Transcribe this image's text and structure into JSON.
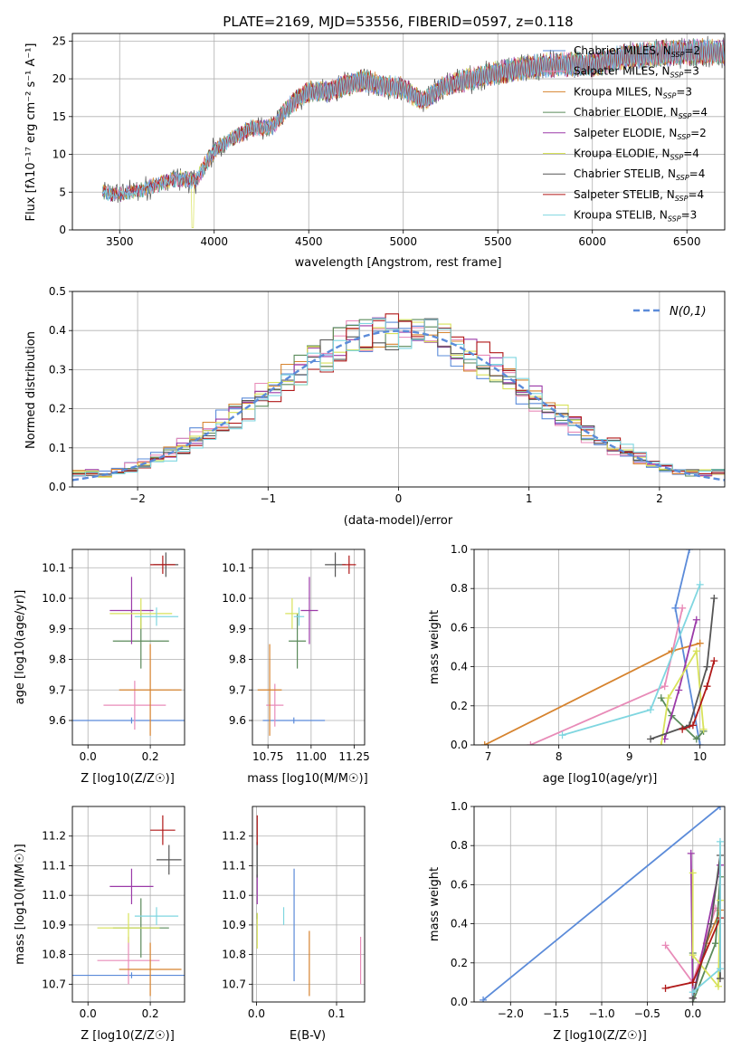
{
  "colors": {
    "Chabrier MILES": "#5b8bd9",
    "Salpeter MILES": "#e88bb8",
    "Kroupa MILES": "#d6832e",
    "Chabrier ELODIE": "#5a8a5a",
    "Salpeter ELODIE": "#9b3aa8",
    "Kroupa ELODIE": "#d8e25a",
    "Chabrier STELIB": "#555555",
    "Salpeter STELIB": "#b01818",
    "Kroupa STELIB": "#7fd6e0",
    "gauss": "#5b8bd9"
  },
  "series": [
    {
      "name": "Chabrier MILES",
      "nssp": "2"
    },
    {
      "name": "Salpeter MILES",
      "nssp": "3"
    },
    {
      "name": "Kroupa MILES",
      "nssp": "3"
    },
    {
      "name": "Chabrier ELODIE",
      "nssp": "4"
    },
    {
      "name": "Salpeter ELODIE",
      "nssp": "2"
    },
    {
      "name": "Kroupa ELODIE",
      "nssp": "4"
    },
    {
      "name": "Chabrier STELIB",
      "nssp": "4"
    },
    {
      "name": "Salpeter STELIB",
      "nssp": "4"
    },
    {
      "name": "Kroupa STELIB",
      "nssp": "3"
    }
  ],
  "chart_data": [
    {
      "id": "spectrum",
      "type": "line",
      "title": "PLATE=2169, MJD=53556, FIBERID=0597, z=0.118",
      "xlabel": "wavelength [Angstrom, rest frame]",
      "ylabel": "Flux [f_λ10^-17 erg cm^-2 s^-1 A^-1]",
      "xlim": [
        3250,
        6700
      ],
      "ylim": [
        0,
        26
      ],
      "xticks": [
        3500,
        4000,
        4500,
        5000,
        5500,
        6000,
        6500
      ],
      "yticks": [
        0,
        5,
        10,
        15,
        20,
        25
      ],
      "continuum": {
        "x": [
          3400,
          3500,
          3600,
          3700,
          3800,
          3900,
          4000,
          4100,
          4200,
          4300,
          4400,
          4500,
          4600,
          4700,
          4800,
          4900,
          5000,
          5100,
          5200,
          5300,
          5400,
          5500,
          5600,
          5700,
          5800,
          5900,
          6000,
          6100,
          6200,
          6300,
          6400,
          6500,
          6600,
          6700
        ],
        "y": [
          5,
          4.7,
          5.2,
          6,
          6.8,
          6.5,
          10.5,
          12.2,
          13.5,
          13.5,
          16.5,
          18.3,
          18.3,
          19.2,
          19.8,
          19.0,
          18.8,
          17.0,
          18.8,
          19.6,
          20.2,
          20.8,
          21.3,
          21.6,
          21.8,
          22.0,
          21.8,
          22.5,
          23.0,
          23.2,
          23.4,
          23.5,
          23.6,
          23.5
        ]
      },
      "legend": "right"
    },
    {
      "id": "residuals",
      "type": "line",
      "xlabel": "(data-model)/error",
      "ylabel": "Normed distribution",
      "xlim": [
        -2.5,
        2.5
      ],
      "ylim": [
        0,
        0.5
      ],
      "xticks": [
        -2,
        -1,
        0,
        1,
        2
      ],
      "yticks": [
        0.0,
        0.1,
        0.2,
        0.3,
        0.4,
        0.5
      ],
      "legend_label": "N(0,1)",
      "bin_width": 0.1,
      "gaussian": {
        "mean": 0,
        "sigma": 1,
        "peak": 0.399
      }
    },
    {
      "id": "age_vs_Z",
      "type": "scatter",
      "xlabel": "Z [log10(Z/Z☉)]",
      "ylabel": "age [log10(age/yr)]",
      "xlim": [
        -0.05,
        0.31
      ],
      "ylim": [
        9.52,
        10.16
      ],
      "xticks": [
        0.0,
        0.2
      ],
      "yticks": [
        9.6,
        9.7,
        9.8,
        9.9,
        10.0,
        10.1
      ],
      "points": [
        {
          "series": "Chabrier MILES",
          "x": 0.14,
          "xerr": 0.28,
          "y": 9.6,
          "yerr": 0.01
        },
        {
          "series": "Salpeter MILES",
          "x": 0.15,
          "xerr": 0.1,
          "y": 9.65,
          "yerr": 0.08
        },
        {
          "series": "Kroupa MILES",
          "x": 0.2,
          "xerr": 0.1,
          "y": 9.7,
          "yerr": 0.15
        },
        {
          "series": "Chabrier ELODIE",
          "x": 0.17,
          "xerr": 0.09,
          "y": 9.86,
          "yerr": 0.09
        },
        {
          "series": "Salpeter ELODIE",
          "x": 0.14,
          "xerr": 0.07,
          "y": 9.96,
          "yerr": 0.11
        },
        {
          "series": "Kroupa ELODIE",
          "x": 0.17,
          "xerr": 0.1,
          "y": 9.95,
          "yerr": 0.05
        },
        {
          "series": "Chabrier STELIB",
          "x": 0.25,
          "xerr": 0.04,
          "y": 10.11,
          "yerr": 0.04
        },
        {
          "series": "Salpeter STELIB",
          "x": 0.24,
          "xerr": 0.04,
          "y": 10.11,
          "yerr": 0.03
        },
        {
          "series": "Kroupa STELIB",
          "x": 0.22,
          "xerr": 0.07,
          "y": 9.94,
          "yerr": 0.03
        }
      ]
    },
    {
      "id": "age_vs_mass",
      "type": "scatter",
      "xlabel": "mass [log10(M/M☉)]",
      "ylabel": "",
      "xlim": [
        10.66,
        11.31
      ],
      "ylim": [
        9.52,
        10.16
      ],
      "xticks": [
        10.75,
        11.0,
        11.25
      ],
      "yticks": [
        9.6,
        9.7,
        9.8,
        9.9,
        10.0,
        10.1
      ],
      "points": [
        {
          "series": "Chabrier MILES",
          "x": 10.9,
          "xerr": 0.18,
          "y": 9.6,
          "yerr": 0.01
        },
        {
          "series": "Salpeter MILES",
          "x": 10.79,
          "xerr": 0.05,
          "y": 9.65,
          "yerr": 0.07
        },
        {
          "series": "Kroupa MILES",
          "x": 10.76,
          "xerr": 0.07,
          "y": 9.7,
          "yerr": 0.15
        },
        {
          "series": "Chabrier ELODIE",
          "x": 10.92,
          "xerr": 0.05,
          "y": 9.86,
          "yerr": 0.09
        },
        {
          "series": "Salpeter ELODIE",
          "x": 10.99,
          "xerr": 0.05,
          "y": 9.96,
          "yerr": 0.11
        },
        {
          "series": "Kroupa ELODIE",
          "x": 10.89,
          "xerr": 0.04,
          "y": 9.95,
          "yerr": 0.05
        },
        {
          "series": "Chabrier STELIB",
          "x": 11.14,
          "xerr": 0.06,
          "y": 10.11,
          "yerr": 0.04
        },
        {
          "series": "Salpeter STELIB",
          "x": 11.22,
          "xerr": 0.04,
          "y": 10.11,
          "yerr": 0.03
        },
        {
          "series": "Kroupa STELIB",
          "x": 10.93,
          "xerr": 0.03,
          "y": 9.94,
          "yerr": 0.03
        }
      ]
    },
    {
      "id": "weight_vs_age",
      "type": "line",
      "xlabel": "age [log10(age/yr)]",
      "ylabel": "mass weight",
      "xlim": [
        6.8,
        10.35
      ],
      "ylim": [
        0,
        1.0
      ],
      "xticks": [
        7,
        8,
        9,
        10
      ],
      "yticks": [
        0.0,
        0.2,
        0.4,
        0.6,
        0.8,
        1.0
      ],
      "lines": [
        {
          "series": "Chabrier MILES",
          "x": [
            9.85,
            9.65,
            10.0
          ],
          "y": [
            1.0,
            0.7,
            0.0
          ]
        },
        {
          "series": "Salpeter MILES",
          "x": [
            7.6,
            9.5,
            9.75
          ],
          "y": [
            0.0,
            0.3,
            0.7
          ]
        },
        {
          "series": "Kroupa MILES",
          "x": [
            6.95,
            9.6,
            10.0
          ],
          "y": [
            0.0,
            0.48,
            0.52
          ]
        },
        {
          "series": "Chabrier ELODIE",
          "x": [
            9.45,
            9.6,
            9.95,
            10.05
          ],
          "y": [
            0.24,
            0.15,
            0.03,
            0.07
          ]
        },
        {
          "series": "Salpeter ELODIE",
          "x": [
            9.5,
            9.7,
            9.95
          ],
          "y": [
            0.03,
            0.28,
            0.64
          ]
        },
        {
          "series": "Kroupa ELODIE",
          "x": [
            9.45,
            9.55,
            9.95,
            10.05
          ],
          "y": [
            0.0,
            0.24,
            0.48,
            0.08
          ]
        },
        {
          "series": "Chabrier STELIB",
          "x": [
            9.3,
            9.85,
            10.1,
            10.2
          ],
          "y": [
            0.03,
            0.1,
            0.4,
            0.75
          ]
        },
        {
          "series": "Salpeter STELIB",
          "x": [
            9.75,
            9.9,
            10.1,
            10.2
          ],
          "y": [
            0.08,
            0.1,
            0.3,
            0.43
          ]
        },
        {
          "series": "Kroupa STELIB",
          "x": [
            8.05,
            9.3,
            10.0
          ],
          "y": [
            0.05,
            0.18,
            0.82
          ]
        }
      ]
    },
    {
      "id": "mass_vs_Z",
      "type": "scatter",
      "xlabel": "Z [log10(Z/Z☉)]",
      "ylabel": "mass [log10(M/M☉)]",
      "xlim": [
        -0.05,
        0.31
      ],
      "ylim": [
        10.64,
        11.3
      ],
      "xticks": [
        0.0,
        0.2
      ],
      "yticks": [
        10.7,
        10.8,
        10.9,
        11.0,
        11.1,
        11.2
      ],
      "points": [
        {
          "series": "Chabrier MILES",
          "x": 0.14,
          "xerr": 0.28,
          "y": 10.73,
          "yerr": 0.01
        },
        {
          "series": "Salpeter MILES",
          "x": 0.13,
          "xerr": 0.1,
          "y": 10.78,
          "yerr": 0.08
        },
        {
          "series": "Kroupa MILES",
          "x": 0.2,
          "xerr": 0.1,
          "y": 10.75,
          "yerr": 0.09
        },
        {
          "series": "Chabrier ELODIE",
          "x": 0.17,
          "xerr": 0.09,
          "y": 10.89,
          "yerr": 0.1
        },
        {
          "series": "Salpeter ELODIE",
          "x": 0.14,
          "xerr": 0.07,
          "y": 11.03,
          "yerr": 0.06
        },
        {
          "series": "Kroupa ELODIE",
          "x": 0.13,
          "xerr": 0.1,
          "y": 10.89,
          "yerr": 0.05
        },
        {
          "series": "Chabrier STELIB",
          "x": 0.26,
          "xerr": 0.04,
          "y": 11.12,
          "yerr": 0.05
        },
        {
          "series": "Salpeter STELIB",
          "x": 0.24,
          "xerr": 0.04,
          "y": 11.22,
          "yerr": 0.05
        },
        {
          "series": "Kroupa STELIB",
          "x": 0.22,
          "xerr": 0.07,
          "y": 10.93,
          "yerr": 0.03
        }
      ]
    },
    {
      "id": "mass_vs_ebv",
      "type": "scatter",
      "xlabel": "E(B-V)",
      "ylabel": "",
      "xlim": [
        -0.005,
        0.135
      ],
      "ylim": [
        10.64,
        11.3
      ],
      "xticks": [
        0.0,
        0.1
      ],
      "yticks": [
        10.7,
        10.8,
        10.9,
        11.0,
        11.1,
        11.2
      ],
      "points": [
        {
          "series": "Chabrier MILES",
          "x": 0.047,
          "y": 10.9,
          "yerr": 0.19
        },
        {
          "series": "Salpeter MILES",
          "x": 0.13,
          "y": 10.78,
          "yerr": 0.08
        },
        {
          "series": "Kroupa MILES",
          "x": 0.066,
          "y": 10.77,
          "yerr": 0.11
        },
        {
          "series": "Chabrier ELODIE",
          "x": 0.001,
          "y": 10.93,
          "yerr": 0.01
        },
        {
          "series": "Salpeter ELODIE",
          "x": 0.001,
          "y": 11.02,
          "yerr": 0.05
        },
        {
          "series": "Kroupa ELODIE",
          "x": 0.001,
          "y": 10.88,
          "yerr": 0.06
        },
        {
          "series": "Chabrier STELIB",
          "x": 0.001,
          "y": 11.12,
          "yerr": 0.06
        },
        {
          "series": "Salpeter STELIB",
          "x": 0.001,
          "y": 11.22,
          "yerr": 0.05
        },
        {
          "series": "Kroupa STELIB",
          "x": 0.034,
          "y": 10.93,
          "yerr": 0.03
        }
      ]
    },
    {
      "id": "weight_vs_Z",
      "type": "line",
      "xlabel": "Z [log10(Z/Z☉)]",
      "ylabel": "mass weight",
      "xlim": [
        -2.4,
        0.35
      ],
      "ylim": [
        0,
        1.0
      ],
      "xticks": [
        -2.0,
        -1.5,
        -1.0,
        -0.5,
        0.0
      ],
      "yticks": [
        0.0,
        0.2,
        0.4,
        0.6,
        0.8,
        1.0
      ],
      "lines": [
        {
          "series": "Chabrier MILES",
          "x": [
            -2.3,
            0.3
          ],
          "y": [
            0.01,
            1.0
          ]
        },
        {
          "series": "Salpeter MILES",
          "x": [
            -0.3,
            0.0,
            0.25
          ],
          "y": [
            0.29,
            0.1,
            0.48
          ]
        },
        {
          "series": "Kroupa MILES",
          "x": [
            0.0,
            0.15,
            0.3
          ],
          "y": [
            0.02,
            0.3,
            0.47
          ]
        },
        {
          "series": "Chabrier ELODIE",
          "x": [
            0.0,
            0.0,
            0.25,
            0.3
          ],
          "y": [
            0.25,
            0.0,
            0.3,
            0.64
          ]
        },
        {
          "series": "Salpeter ELODIE",
          "x": [
            -0.02,
            0.0,
            0.3
          ],
          "y": [
            0.76,
            0.02,
            0.7
          ]
        },
        {
          "series": "Kroupa ELODIE",
          "x": [
            0.0,
            0.0,
            0.28,
            0.3
          ],
          "y": [
            0.66,
            0.24,
            0.08,
            0.52
          ]
        },
        {
          "series": "Chabrier STELIB",
          "x": [
            0.0,
            0.2,
            0.3,
            0.3
          ],
          "y": [
            0.02,
            0.4,
            0.75,
            0.12
          ]
        },
        {
          "series": "Salpeter STELIB",
          "x": [
            -0.3,
            0.0,
            0.3
          ],
          "y": [
            0.07,
            0.1,
            0.43
          ]
        },
        {
          "series": "Kroupa STELIB",
          "x": [
            0.0,
            0.3,
            0.3
          ],
          "y": [
            0.05,
            0.17,
            0.82
          ]
        }
      ]
    }
  ]
}
